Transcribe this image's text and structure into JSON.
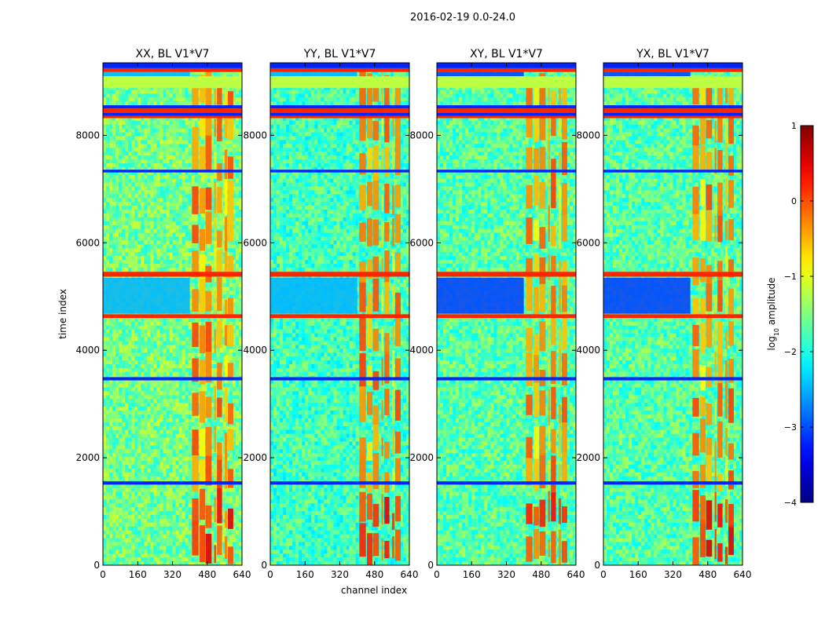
{
  "figure": {
    "suptitle": "2016-02-19 0.0-24.0",
    "xlabel": "channel index",
    "ylabel": "time index"
  },
  "chart_data": {
    "type": "heatmap",
    "colormap": "jet",
    "x_range": [
      0,
      640
    ],
    "y_range": [
      0,
      9350
    ],
    "x_ticks": [
      0,
      160,
      320,
      480,
      640
    ],
    "y_ticks": [
      0,
      2000,
      4000,
      6000,
      8000
    ],
    "x_tick_labels": [
      "0",
      "160",
      "320",
      "480",
      "640"
    ],
    "y_tick_labels": [
      "0",
      "2000",
      "4000",
      "6000",
      "8000"
    ],
    "panels": [
      {
        "title": "XX, BL V1*V7",
        "pol": "XX"
      },
      {
        "title": "YY, BL V1*V7",
        "pol": "YY"
      },
      {
        "title": "XY, BL V1*V7",
        "pol": "XY"
      },
      {
        "title": "YX, BL V1*V7",
        "pol": "YX"
      }
    ],
    "colorbar": {
      "range": [
        -4,
        1
      ],
      "ticks": [
        1,
        0,
        -1,
        -2,
        -3,
        -4
      ],
      "tick_labels": [
        "1",
        "0",
        "−1",
        "−2",
        "−3",
        "−4"
      ],
      "label_prefix": "log",
      "label_subscript": "10",
      "label_suffix": " amplitude"
    },
    "flag_rows": [
      {
        "t0": 9180,
        "t1": 9250,
        "level": 0.2
      },
      {
        "t0": 9250,
        "t1": 9350,
        "level": -3.2
      },
      {
        "t0": 8500,
        "t1": 8560,
        "level": -3.2
      },
      {
        "t0": 8420,
        "t1": 8500,
        "level": 0.2
      },
      {
        "t0": 8320,
        "t1": 8360,
        "level": 0.2
      },
      {
        "t0": 7310,
        "t1": 7360,
        "level": -3.2
      },
      {
        "t0": 5370,
        "t1": 5460,
        "level": 0.2
      },
      {
        "t0": 4600,
        "t1": 4670,
        "level": 0.2
      },
      {
        "t0": 3440,
        "t1": 3500,
        "level": -3.2
      },
      {
        "t0": 1500,
        "t1": 1560,
        "level": -3.2
      }
    ],
    "flag_channels": [
      {
        "c0": 0,
        "c1": 640,
        "t0": 8880,
        "t1": 9100,
        "level": -1.2
      },
      {
        "c0": 0,
        "c1": 640,
        "t0": 8360,
        "t1": 8420,
        "level": -3.2
      }
    ]
  }
}
